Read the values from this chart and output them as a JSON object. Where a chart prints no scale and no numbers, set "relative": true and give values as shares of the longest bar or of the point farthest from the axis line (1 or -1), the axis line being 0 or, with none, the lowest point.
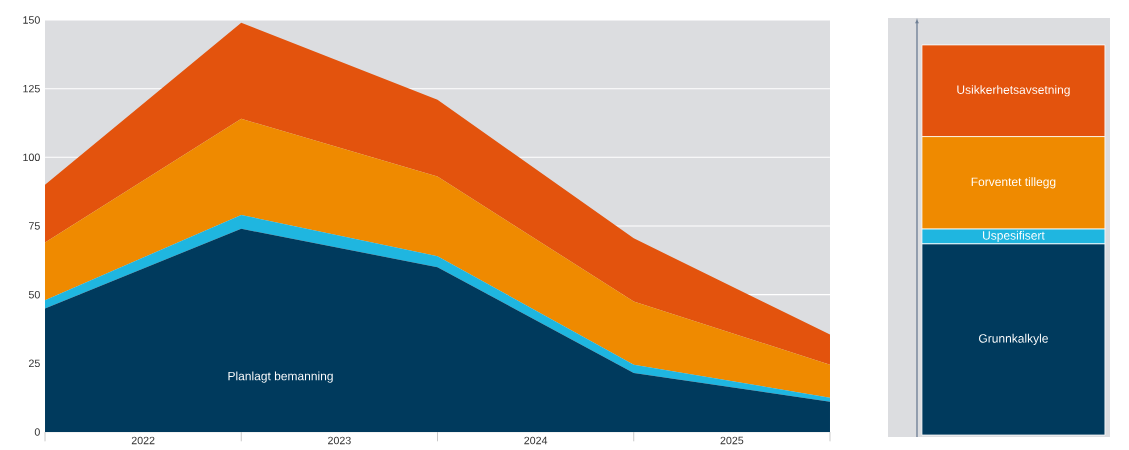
{
  "chart_data": [
    {
      "type": "area",
      "stacked": true,
      "x": [
        2022,
        2023,
        2024,
        2025,
        2026
      ],
      "xlim": [
        2022,
        2026
      ],
      "xticks": [
        {
          "value": 2022,
          "label": null
        },
        {
          "value": 2022.5,
          "label": "2022"
        },
        {
          "value": 2023,
          "label": null
        },
        {
          "value": 2023.5,
          "label": "2023"
        },
        {
          "value": 2024,
          "label": null
        },
        {
          "value": 2024.5,
          "label": "2024"
        },
        {
          "value": 2025,
          "label": null
        },
        {
          "value": 2025.5,
          "label": "2025"
        },
        {
          "value": 2026,
          "label": null
        }
      ],
      "ylim": [
        0,
        150
      ],
      "yticks": [
        0,
        25,
        50,
        75,
        100,
        125,
        150
      ],
      "grid": "y",
      "series": [
        {
          "name": "Planlagt bemanning",
          "color": "#003a5d",
          "values": [
            45,
            74,
            60,
            21.5,
            11
          ]
        },
        {
          "color": "#1fb6e0",
          "values": [
            3,
            5,
            4,
            3,
            1.5
          ]
        },
        {
          "color": "#ef8a00",
          "values": [
            21,
            35,
            29,
            23,
            12
          ]
        },
        {
          "color": "#e3530d",
          "values": [
            21,
            35,
            28,
            23,
            11
          ]
        }
      ]
    },
    {
      "type": "bar",
      "stacked": true,
      "relative": true,
      "categories": [
        null
      ],
      "series": [
        {
          "name": "Grunnkalkyle",
          "color": "#003a5d",
          "values": [
            0.49
          ]
        },
        {
          "name": "Uspesifisert",
          "color": "#1fb6e0",
          "values": [
            0.038
          ]
        },
        {
          "name": "Forventet tillegg",
          "color": "#ef8a00",
          "values": [
            0.237
          ]
        },
        {
          "name": "Usikkerhetsavsetning",
          "color": "#e3530d",
          "values": [
            0.235
          ]
        }
      ]
    }
  ]
}
